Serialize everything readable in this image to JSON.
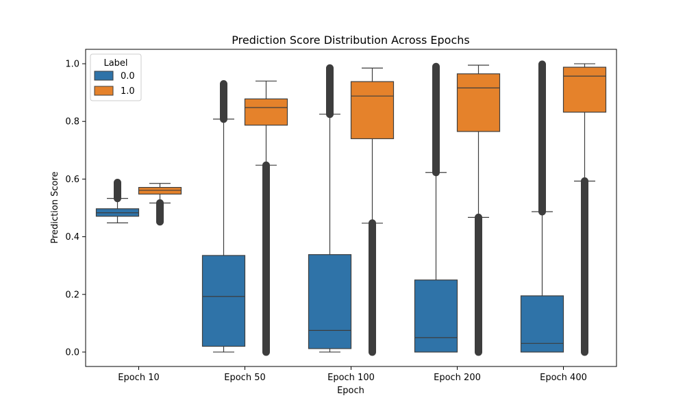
{
  "chart_data": {
    "type": "box",
    "title": "Prediction Score Distribution Across Epochs",
    "xlabel": "Epoch",
    "ylabel": "Prediction Score",
    "ylim": [
      -0.05,
      1.05
    ],
    "yticks": [
      "0.0",
      "0.2",
      "0.4",
      "0.6",
      "0.8",
      "1.0"
    ],
    "categories": [
      "Epoch 10",
      "Epoch 50",
      "Epoch 100",
      "Epoch 200",
      "Epoch 400"
    ],
    "grid": false,
    "legend": {
      "title": "Label",
      "position": "top-left",
      "entries": [
        {
          "label": "0.0",
          "color": "#2f73a8"
        },
        {
          "label": "1.0",
          "color": "#e5822b"
        }
      ]
    },
    "series": [
      {
        "name": "0.0",
        "color": "#2f73a8",
        "boxes": [
          {
            "whisker_low": 0.448,
            "q1": 0.471,
            "median": 0.483,
            "q3": 0.497,
            "whisker_high": 0.533,
            "outliers_low": [],
            "outliers_high": [
              0.533,
              0.588
            ]
          },
          {
            "whisker_low": 0.0,
            "q1": 0.02,
            "median": 0.193,
            "q3": 0.335,
            "whisker_high": 0.808,
            "outliers_low": [],
            "outliers_high": [
              0.808,
              0.93
            ]
          },
          {
            "whisker_low": 0.0,
            "q1": 0.012,
            "median": 0.075,
            "q3": 0.338,
            "whisker_high": 0.825,
            "outliers_low": [],
            "outliers_high": [
              0.825,
              0.985
            ]
          },
          {
            "whisker_low": 0.0,
            "q1": 0.0,
            "median": 0.05,
            "q3": 0.25,
            "whisker_high": 0.623,
            "outliers_low": [],
            "outliers_high": [
              0.623,
              0.99
            ]
          },
          {
            "whisker_low": 0.0,
            "q1": 0.0,
            "median": 0.03,
            "q3": 0.195,
            "whisker_high": 0.487,
            "outliers_low": [],
            "outliers_high": [
              0.487,
              0.998
            ]
          }
        ]
      },
      {
        "name": "1.0",
        "color": "#e5822b",
        "boxes": [
          {
            "whisker_low": 0.517,
            "q1": 0.548,
            "median": 0.561,
            "q3": 0.571,
            "whisker_high": 0.585,
            "outliers_low": [
              0.452,
              0.517
            ],
            "outliers_high": []
          },
          {
            "whisker_low": 0.648,
            "q1": 0.787,
            "median": 0.848,
            "q3": 0.878,
            "whisker_high": 0.94,
            "outliers_low": [
              0.0,
              0.648
            ],
            "outliers_high": []
          },
          {
            "whisker_low": 0.447,
            "q1": 0.74,
            "median": 0.888,
            "q3": 0.938,
            "whisker_high": 0.985,
            "outliers_low": [
              0.0,
              0.447
            ],
            "outliers_high": []
          },
          {
            "whisker_low": 0.467,
            "q1": 0.765,
            "median": 0.916,
            "q3": 0.965,
            "whisker_high": 0.995,
            "outliers_low": [
              0.0,
              0.467
            ],
            "outliers_high": []
          },
          {
            "whisker_low": 0.593,
            "q1": 0.832,
            "median": 0.957,
            "q3": 0.988,
            "whisker_high": 1.0,
            "outliers_low": [
              0.0,
              0.593
            ],
            "outliers_high": []
          }
        ]
      }
    ]
  }
}
